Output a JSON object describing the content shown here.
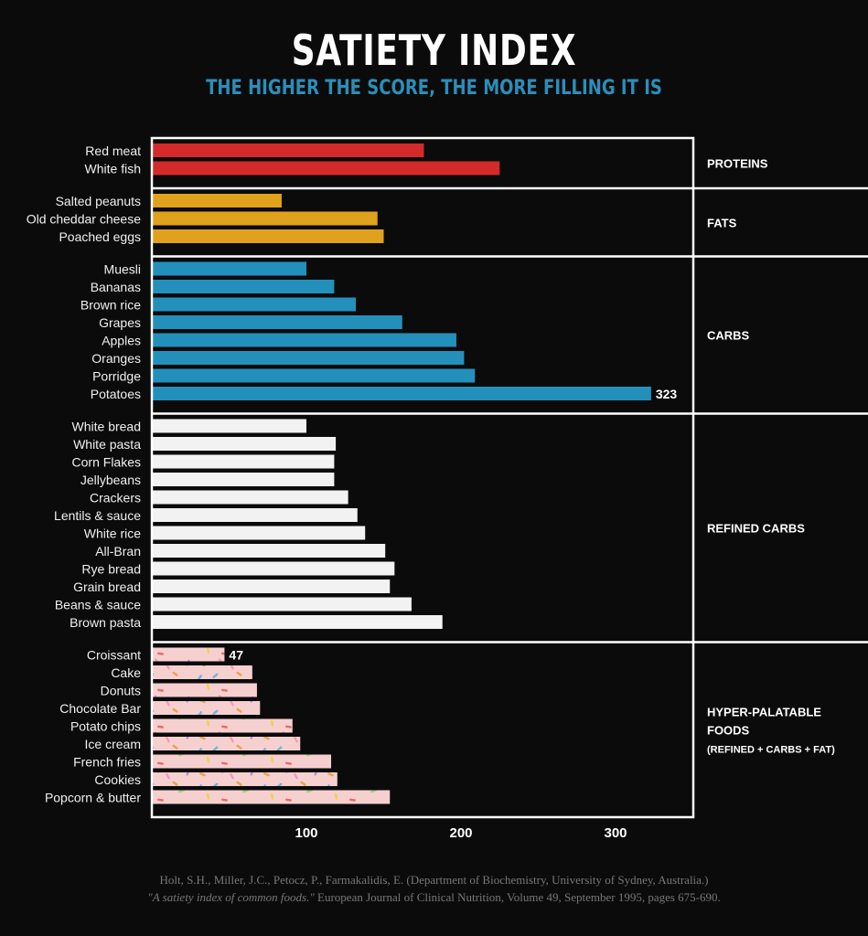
{
  "chart_data": {
    "type": "bar",
    "orientation": "horizontal",
    "title": "SATIETY INDEX",
    "subtitle": "THE HIGHER THE SCORE, THE MORE FILLING IT IS",
    "xlim": [
      0,
      350
    ],
    "xticks": [
      100,
      200,
      300
    ],
    "groups": [
      {
        "name": "PROTEINS",
        "color": "#d42a2a",
        "pattern": "solid",
        "items": [
          {
            "label": "Red meat",
            "value": 176
          },
          {
            "label": "White fish",
            "value": 225
          }
        ]
      },
      {
        "name": "FATS",
        "color": "#e0a21c",
        "pattern": "solid",
        "items": [
          {
            "label": "Salted peanuts",
            "value": 84
          },
          {
            "label": "Old cheddar cheese",
            "value": 146
          },
          {
            "label": "Poached eggs",
            "value": 150
          }
        ]
      },
      {
        "name": "CARBS",
        "color": "#2390bb",
        "pattern": "solid",
        "items": [
          {
            "label": "Muesli",
            "value": 100
          },
          {
            "label": "Bananas",
            "value": 118
          },
          {
            "label": "Brown rice",
            "value": 132
          },
          {
            "label": "Grapes",
            "value": 162
          },
          {
            "label": "Apples",
            "value": 197
          },
          {
            "label": "Oranges",
            "value": 202
          },
          {
            "label": "Porridge",
            "value": 209
          },
          {
            "label": "Potatoes",
            "value": 323,
            "data_label": "323"
          }
        ]
      },
      {
        "name": "REFINED CARBS",
        "color": "#f2f2f2",
        "pattern": "solid",
        "items": [
          {
            "label": "White bread",
            "value": 100
          },
          {
            "label": "White pasta",
            "value": 119
          },
          {
            "label": "Corn Flakes",
            "value": 118
          },
          {
            "label": "Jellybeans",
            "value": 118
          },
          {
            "label": "Crackers",
            "value": 127
          },
          {
            "label": "Lentils & sauce",
            "value": 133
          },
          {
            "label": "White rice",
            "value": 138
          },
          {
            "label": "All-Bran",
            "value": 151
          },
          {
            "label": "Rye bread",
            "value": 157
          },
          {
            "label": "Grain bread",
            "value": 154
          },
          {
            "label": "Beans & sauce",
            "value": 168
          },
          {
            "label": "Brown pasta",
            "value": 188
          }
        ]
      },
      {
        "name": "HYPER-PALATABLE",
        "name_line2": "FOODS",
        "name_line3": "(REFINED + CARBS + FAT)",
        "color": "#f6cfcf",
        "pattern": "sprinkles",
        "items": [
          {
            "label": "Croissant",
            "value": 47,
            "data_label": "47"
          },
          {
            "label": "Cake",
            "value": 65
          },
          {
            "label": "Donuts",
            "value": 68
          },
          {
            "label": "Chocolate Bar",
            "value": 70
          },
          {
            "label": "Potato chips",
            "value": 91
          },
          {
            "label": "Ice cream",
            "value": 96
          },
          {
            "label": "French fries",
            "value": 116
          },
          {
            "label": "Cookies",
            "value": 120
          },
          {
            "label": "Popcorn & butter",
            "value": 154
          }
        ]
      }
    ]
  },
  "citation": {
    "line1": "Holt, S.H., Miller, J.C., Petocz, P., Farmakalidis, E. (Department of Biochemistry, University of Sydney, Australia.)",
    "line2_title": "\"A satiety index of common foods.\"",
    "line2_rest": " European Journal of Clinical Nutrition, Volume 49, September 1995, pages 675-690."
  },
  "colors": {
    "background": "#0b0b0b",
    "subtitle": "#2a8fba",
    "frame": "#ffffff",
    "sprinkles": [
      "#e8a24a",
      "#6fb3e0",
      "#f29bb7",
      "#9bd17a",
      "#f0d24a",
      "#e76b6b",
      "#b58be0"
    ]
  }
}
